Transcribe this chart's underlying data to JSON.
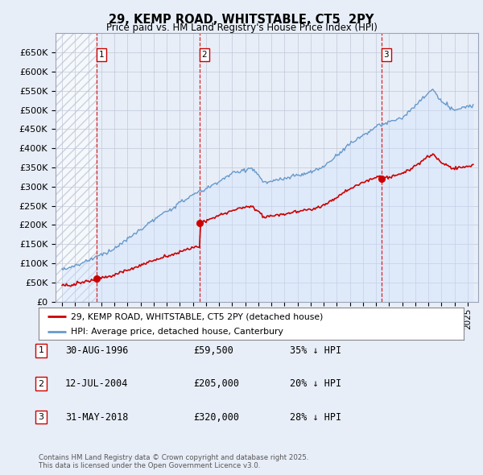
{
  "title": "29, KEMP ROAD, WHITSTABLE, CT5  2PY",
  "subtitle": "Price paid vs. HM Land Registry's House Price Index (HPI)",
  "transactions": [
    {
      "date": 1996.66,
      "price": 59500,
      "label": "1"
    },
    {
      "date": 2004.53,
      "price": 205000,
      "label": "2"
    },
    {
      "date": 2018.41,
      "price": 320000,
      "label": "3"
    }
  ],
  "transaction_dates_str": [
    "30-AUG-1996",
    "12-JUL-2004",
    "31-MAY-2018"
  ],
  "transaction_prices_str": [
    "£59,500",
    "£205,000",
    "£320,000"
  ],
  "transaction_hpi_str": [
    "35% ↓ HPI",
    "20% ↓ HPI",
    "28% ↓ HPI"
  ],
  "vline_color": "#dd0000",
  "sale_line_color": "#cc0000",
  "hpi_line_color": "#6699cc",
  "hpi_fill_color": "#cce0ff",
  "background_color": "#e8eef8",
  "plot_bg_color": "#e8eef8",
  "ylim": [
    0,
    700000
  ],
  "yticks": [
    0,
    50000,
    100000,
    150000,
    200000,
    250000,
    300000,
    350000,
    400000,
    450000,
    500000,
    550000,
    600000,
    650000
  ],
  "xlim_start": 1993.5,
  "xlim_end": 2025.8,
  "grid_color": "#c0c8d8",
  "legend_label_red": "29, KEMP ROAD, WHITSTABLE, CT5 2PY (detached house)",
  "legend_label_blue": "HPI: Average price, detached house, Canterbury",
  "footnote": "Contains HM Land Registry data © Crown copyright and database right 2025.\nThis data is licensed under the Open Government Licence v3.0."
}
